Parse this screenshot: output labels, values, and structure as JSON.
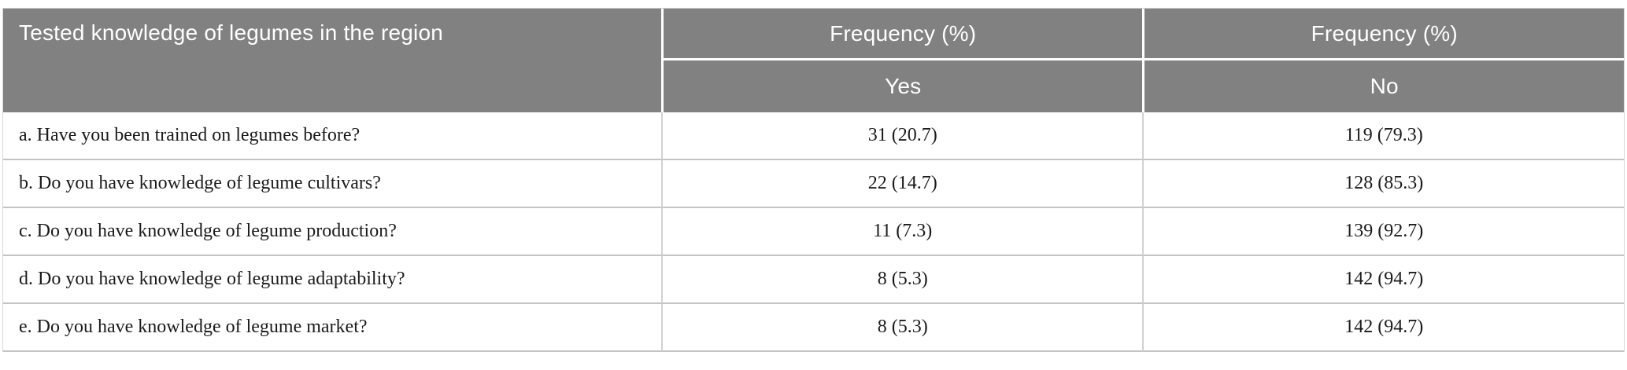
{
  "colors": {
    "header_bg": "#818181",
    "header_text": "#ffffff",
    "body_text": "#1b1b1b",
    "row_separator": "#c4c4c4",
    "column_separator": "#d2d2d2",
    "header_separator": "#ffffff",
    "page_bg": "#ffffff"
  },
  "table": {
    "col1_header": "Tested knowledge of legumes in the region",
    "yes_group_header": "Frequency (%)",
    "no_group_header": "Frequency (%)",
    "yes_subheader": "Yes",
    "no_subheader": "No",
    "rows": [
      {
        "question": "a. Have you been trained on legumes before?",
        "yes": "31 (20.7)",
        "no": "119 (79.3)"
      },
      {
        "question": "b. Do you have knowledge of legume cultivars?",
        "yes": "22 (14.7)",
        "no": "128 (85.3)"
      },
      {
        "question": "c. Do you have knowledge of legume production?",
        "yes": "11 (7.3)",
        "no": "139 (92.7)"
      },
      {
        "question": "d. Do you have knowledge of legume adaptability?",
        "yes": "8 (5.3)",
        "no": "142 (94.7)"
      },
      {
        "question": "e. Do you have knowledge of legume market?",
        "yes": "8 (5.3)",
        "no": "142 (94.7)"
      }
    ]
  },
  "chart_data": {
    "type": "table",
    "title": "Tested knowledge of legumes in the region",
    "columns": [
      "Tested knowledge of legumes in the region",
      "Frequency (%) Yes",
      "Frequency (%) No"
    ],
    "rows": [
      {
        "question": "a. Have you been trained on legumes before?",
        "yes_count": 31,
        "yes_pct": 20.7,
        "no_count": 119,
        "no_pct": 79.3
      },
      {
        "question": "b. Do you have knowledge of legume cultivars?",
        "yes_count": 22,
        "yes_pct": 14.7,
        "no_count": 128,
        "no_pct": 85.3
      },
      {
        "question": "c. Do you have knowledge of legume production?",
        "yes_count": 11,
        "yes_pct": 7.3,
        "no_count": 139,
        "no_pct": 92.7
      },
      {
        "question": "d. Do you have knowledge of legume adaptability?",
        "yes_count": 8,
        "yes_pct": 5.3,
        "no_count": 142,
        "no_pct": 94.7
      },
      {
        "question": "e. Do you have knowledge of legume market?",
        "yes_count": 8,
        "yes_pct": 5.3,
        "no_count": 142,
        "no_pct": 94.7
      }
    ]
  }
}
